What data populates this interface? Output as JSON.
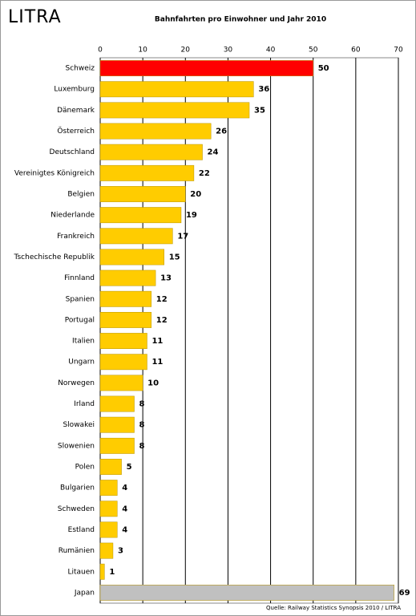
{
  "logo": "LITRA",
  "chart_data": {
    "type": "bar",
    "orientation": "horizontal",
    "title": "Bahnfahrten pro Einwohner und Jahr 2010",
    "source": "Quelle: Railway Statistics Synopsis 2010  /  LITRA",
    "categories": [
      "Schweiz",
      "Luxemburg",
      "Dänemark",
      "Österreich",
      "Deutschland",
      "Vereinigtes Königreich",
      "Belgien",
      "Niederlande",
      "Frankreich",
      "Tschechische Republik",
      "Finnland",
      "Spanien",
      "Portugal",
      "Italien",
      "Ungarn",
      "Norwegen",
      "Irland",
      "Slowakei",
      "Slowenien",
      "Polen",
      "Bulgarien",
      "Schweden",
      "Estland",
      "Rumänien",
      "Litauen",
      "Japan"
    ],
    "values": [
      50,
      36,
      35,
      26,
      24,
      22,
      20,
      19,
      17,
      15,
      13,
      12,
      12,
      11,
      11,
      10,
      8,
      8,
      8,
      5,
      4,
      4,
      4,
      3,
      1,
      69
    ],
    "colors": [
      "#ff0000",
      "#ffcc00",
      "#ffcc00",
      "#ffcc00",
      "#ffcc00",
      "#ffcc00",
      "#ffcc00",
      "#ffcc00",
      "#ffcc00",
      "#ffcc00",
      "#ffcc00",
      "#ffcc00",
      "#ffcc00",
      "#ffcc00",
      "#ffcc00",
      "#ffcc00",
      "#ffcc00",
      "#ffcc00",
      "#ffcc00",
      "#ffcc00",
      "#ffcc00",
      "#ffcc00",
      "#ffcc00",
      "#ffcc00",
      "#ffcc00",
      "#c0c0c0"
    ],
    "xlim": [
      0,
      70
    ],
    "xticks": [
      0,
      10,
      20,
      30,
      40,
      50,
      60,
      70
    ],
    "grid": true
  }
}
